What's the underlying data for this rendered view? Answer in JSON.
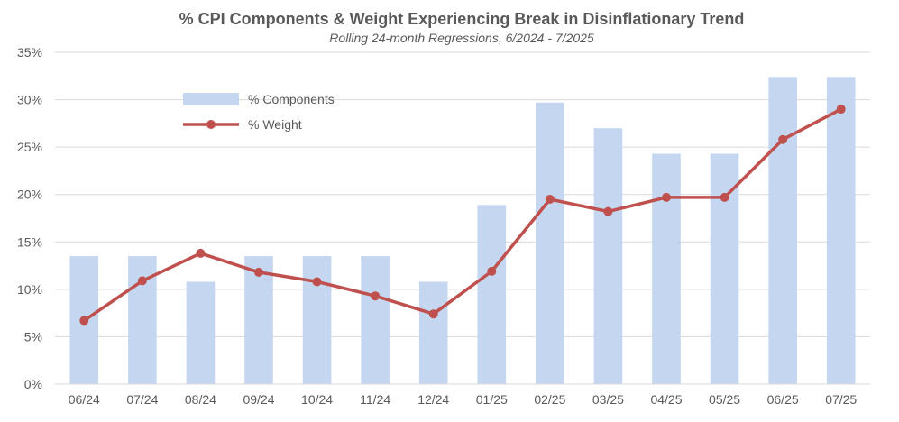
{
  "chart_data": {
    "type": "bar+line",
    "title": "% CPI Components & Weight Experiencing Break in Disinflationary Trend",
    "subtitle": "Rolling 24-month Regressions, 6/2024 - 7/2025",
    "categories": [
      "06/24",
      "07/24",
      "08/24",
      "09/24",
      "10/24",
      "11/24",
      "12/24",
      "01/25",
      "02/25",
      "03/25",
      "04/25",
      "05/25",
      "06/25",
      "07/25"
    ],
    "series": [
      {
        "name": "% Components",
        "type": "bar",
        "color": "#c5d7f0",
        "values": [
          13.5,
          13.5,
          10.8,
          13.5,
          13.5,
          13.5,
          10.8,
          18.9,
          29.7,
          27.0,
          24.3,
          24.3,
          32.4,
          32.4
        ]
      },
      {
        "name": "% Weight",
        "type": "line",
        "color": "#c0504d",
        "values": [
          6.7,
          10.9,
          13.8,
          11.8,
          10.8,
          9.3,
          7.4,
          11.9,
          19.5,
          18.2,
          19.7,
          19.7,
          25.8,
          29.0
        ]
      }
    ],
    "ylim": [
      0,
      35
    ],
    "yticks": [
      "0%",
      "5%",
      "10%",
      "15%",
      "20%",
      "25%",
      "30%",
      "35%"
    ],
    "ytick_values": [
      0,
      5,
      10,
      15,
      20,
      25,
      30,
      35
    ],
    "grid": true,
    "legend_position": "top-left",
    "gridline_color": "#d9d9d9",
    "text_color": "#595959"
  }
}
